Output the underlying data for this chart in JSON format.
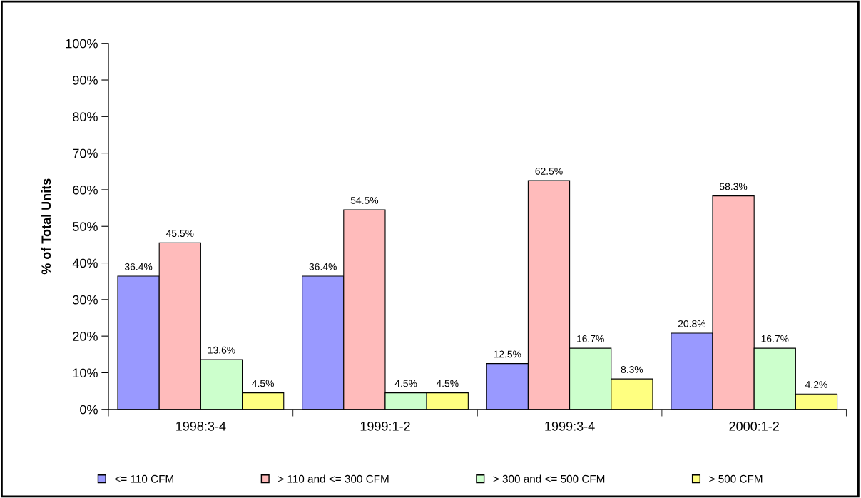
{
  "chart_data": {
    "type": "bar",
    "ylabel": "% of Total Units",
    "categories": [
      "1998:3-4",
      "1999:1-2",
      "1999:3-4",
      "2000:1-2"
    ],
    "series": [
      {
        "name": "<= 110 CFM",
        "color": "#9999ff",
        "values": [
          36.4,
          36.4,
          12.5,
          20.8
        ],
        "value_labels": [
          "36.4%",
          "36.4%",
          "12.5%",
          "20.8%"
        ]
      },
      {
        "name": "> 110 and <= 300 CFM",
        "color": "#ffbbbb",
        "values": [
          45.5,
          54.5,
          62.5,
          58.3
        ],
        "value_labels": [
          "45.5%",
          "54.5%",
          "62.5%",
          "58.3%"
        ]
      },
      {
        "name": "> 300 and <= 500 CFM",
        "color": "#ccffcc",
        "values": [
          13.6,
          4.5,
          16.7,
          16.7
        ],
        "value_labels": [
          "13.6%",
          "4.5%",
          "16.7%",
          "16.7%"
        ]
      },
      {
        "name": "> 500 CFM",
        "color": "#ffff80",
        "values": [
          4.5,
          4.5,
          8.3,
          4.2
        ],
        "value_labels": [
          "4.5%",
          "4.5%",
          "8.3%",
          "4.2%"
        ]
      }
    ],
    "ylim": [
      0,
      100
    ],
    "yticks": [
      {
        "value": 0,
        "label": "0%"
      },
      {
        "value": 10,
        "label": "10%"
      },
      {
        "value": 20,
        "label": "20%"
      },
      {
        "value": 30,
        "label": "30%"
      },
      {
        "value": 40,
        "label": "40%"
      },
      {
        "value": 50,
        "label": "50%"
      },
      {
        "value": 60,
        "label": "60%"
      },
      {
        "value": 70,
        "label": "70%"
      },
      {
        "value": 80,
        "label": "80%"
      },
      {
        "value": 90,
        "label": "90%"
      },
      {
        "value": 100,
        "label": "100%"
      }
    ],
    "grid": false,
    "legend": "bottom"
  }
}
